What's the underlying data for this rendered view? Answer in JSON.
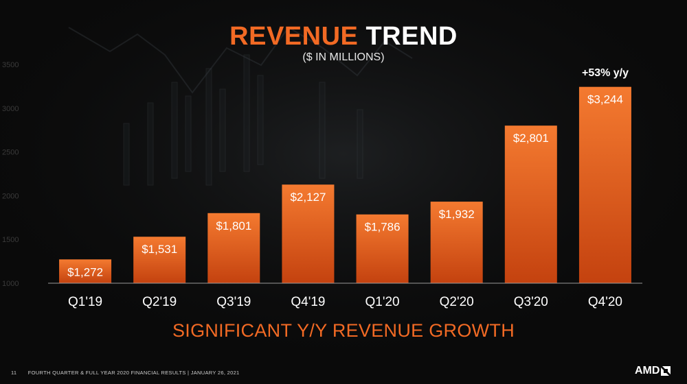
{
  "slide": {
    "title_word1": "REVENUE",
    "title_word2": "TREND",
    "subtitle": "($ IN MILLIONS)",
    "callout": "+53% y/y",
    "growth_text": "SIGNIFICANT Y/Y REVENUE GROWTH",
    "footer_page": "11",
    "footer_text": "FOURTH QUARTER & FULL YEAR 2020 FINANCIAL RESULTS  |  JANUARY 26, 2021",
    "logo_text": "AMD"
  },
  "colors": {
    "accent": "#f26a24",
    "bar_top": "#f47a30",
    "bar_bottom": "#c4420f",
    "text": "#ffffff"
  },
  "chart_data": {
    "type": "bar",
    "categories": [
      "Q1'19",
      "Q2'19",
      "Q3'19",
      "Q4'19",
      "Q1'20",
      "Q2'20",
      "Q3'20",
      "Q4'20"
    ],
    "values": [
      1272,
      1531,
      1801,
      2127,
      1786,
      1932,
      2801,
      3244
    ],
    "data_labels": [
      "$1,272",
      "$1,531",
      "$1,801",
      "$2,127",
      "$1,786",
      "$1,932",
      "$2,801",
      "$3,244"
    ],
    "y_ticks": [
      "1000",
      "1500",
      "2000",
      "2500",
      "3000",
      "3500"
    ],
    "ylim": [
      1000,
      3500
    ],
    "annotation": "+53% y/y",
    "grid": false,
    "legend": "none"
  }
}
